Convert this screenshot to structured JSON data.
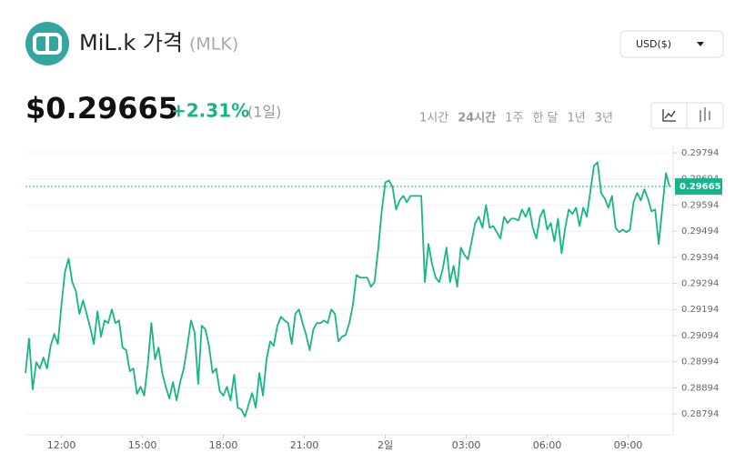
{
  "header": {
    "title": "MiL.k 가격",
    "symbol": "(MLK)",
    "currency": "USD($)",
    "price": "$0.29665",
    "change": "+2.31%",
    "period": "(1일)",
    "ranges": [
      "1시간",
      "24시간",
      "1주",
      "한 달",
      "1년",
      "3년"
    ]
  },
  "chart_data": {
    "type": "line",
    "x": [
      640,
      648,
      656,
      664,
      672,
      680,
      688,
      696,
      704,
      712,
      720,
      728,
      736,
      744,
      752,
      760,
      768,
      776,
      784,
      792,
      800,
      808,
      816,
      824,
      832,
      840,
      848,
      856,
      864,
      872,
      880,
      888,
      896,
      904,
      912,
      920,
      928,
      936,
      944,
      952,
      960,
      968,
      976,
      984,
      992,
      1000,
      1008,
      1016,
      1024,
      1032,
      1040,
      1048,
      1056,
      1064,
      1072,
      1080,
      1088,
      1096,
      1104,
      1112,
      1120,
      1128,
      1136,
      1144,
      1152,
      1160,
      1168,
      1176,
      1184,
      1192,
      1200,
      1208,
      1216,
      1224,
      1232,
      1240,
      1248,
      1256,
      1264,
      1272,
      1280,
      1288,
      1296,
      1304,
      1312,
      1320,
      1328,
      1336,
      1344,
      1352,
      1360,
      1368,
      1376,
      1384,
      1392,
      1400,
      1408,
      1416,
      1424,
      1432,
      1440,
      1448,
      1456,
      1464,
      1472,
      1480,
      1488,
      1496,
      1504,
      1512,
      1520,
      1528,
      1536,
      1544,
      1552,
      1560,
      1568,
      1576,
      1584,
      1592,
      1600,
      1608,
      1616,
      1624,
      1632,
      1640,
      1648,
      1656,
      1664,
      1672,
      1680,
      1688,
      1696,
      1704,
      1712,
      1720,
      1728,
      1736,
      1744,
      1752,
      1760,
      1768,
      1776,
      1784,
      1792,
      1800,
      1808,
      1816,
      1824,
      1832,
      1840,
      1848,
      1856,
      1864,
      1872,
      1880,
      1888,
      1896,
      1904,
      1912,
      1920,
      1928,
      1936,
      1944,
      1952,
      1960,
      1968,
      1976,
      1984,
      1992,
      2000,
      2008,
      2016,
      2024,
      2032,
      2040,
      2048,
      2056,
      2064,
      2072
    ],
    "series": [
      {
        "color": "#16b489",
        "values": [
          0.28951,
          0.29083,
          0.28888,
          0.28992,
          0.28968,
          0.2901,
          0.28968,
          0.29055,
          0.291,
          0.29062,
          0.29212,
          0.2934,
          0.29389,
          0.29299,
          0.29264,
          0.29177,
          0.29229,
          0.29177,
          0.29125,
          0.29062,
          0.29187,
          0.2909,
          0.29152,
          0.29142,
          0.29194,
          0.29142,
          0.29152,
          0.29048,
          0.29038,
          0.28958,
          0.28968,
          0.28871,
          0.28898,
          0.28864,
          0.28985,
          0.29142,
          0.29003,
          0.29048,
          0.28951,
          0.28898,
          0.28853,
          0.28916,
          0.28846,
          0.28916,
          0.28968,
          0.29055,
          0.29152,
          0.29107,
          0.28909,
          0.29132,
          0.29118,
          0.29055,
          0.28951,
          0.28968,
          0.28881,
          0.28864,
          0.28898,
          0.28846,
          0.28944,
          0.28818,
          0.28811,
          0.28784,
          0.28829,
          0.28874,
          0.28818,
          0.28951,
          0.28864,
          0.29003,
          0.29072,
          0.29055,
          0.29132,
          0.29166,
          0.29152,
          0.29142,
          0.29062,
          0.29177,
          0.29194,
          0.29142,
          0.29097,
          0.29038,
          0.29118,
          0.29142,
          0.29142,
          0.29152,
          0.29142,
          0.29194,
          0.29177,
          0.29072,
          0.2909,
          0.29097,
          0.29142,
          0.29212,
          0.29326,
          0.29316,
          0.29316,
          0.29316,
          0.29281,
          0.29299,
          0.2942,
          0.2957,
          0.29681,
          0.29688,
          0.29664,
          0.29577,
          0.29612,
          0.29629,
          0.29605,
          0.29629,
          0.29629,
          0.29629,
          0.29629,
          0.29299,
          0.29445,
          0.29368,
          0.29316,
          0.29299,
          0.29351,
          0.29431,
          0.29299,
          0.29361,
          0.29281,
          0.29431,
          0.29403,
          0.29386,
          0.29455,
          0.29525,
          0.29549,
          0.29507,
          0.29594,
          0.29507,
          0.29514,
          0.2949,
          0.29466,
          0.29549,
          0.29525,
          0.29542,
          0.29542,
          0.29535,
          0.29577,
          0.29549,
          0.29584,
          0.29507,
          0.29466,
          0.29549,
          0.29577,
          0.295,
          0.29525,
          0.29455,
          0.29542,
          0.2941,
          0.29507,
          0.29577,
          0.2956,
          0.29584,
          0.29514,
          0.29584,
          0.29549,
          0.29647,
          0.29744,
          0.29758,
          0.2964,
          0.29619,
          0.29584,
          0.29629,
          0.29507,
          0.2949,
          0.295,
          0.2949,
          0.295,
          0.29605,
          0.2964,
          0.29612,
          0.29654,
          0.29619,
          0.2957,
          0.29577,
          0.29445,
          0.29584,
          0.29716,
          0.29665
        ]
      }
    ],
    "current_price": 0.29665,
    "xlim": [
      640,
      2080
    ],
    "xticks": [
      {
        "value": 720,
        "label": "12:00"
      },
      {
        "value": 900,
        "label": "15:00"
      },
      {
        "value": 1080,
        "label": "18:00"
      },
      {
        "value": 1260,
        "label": "21:00"
      },
      {
        "value": 1440,
        "label": "2일"
      },
      {
        "value": 1620,
        "label": "03:00"
      },
      {
        "value": 1800,
        "label": "06:00"
      },
      {
        "value": 1980,
        "label": "09:00"
      }
    ],
    "ylim": [
      0.28714,
      0.29822
    ],
    "yticks": [
      0.28794,
      0.28894,
      0.28994,
      0.29094,
      0.29194,
      0.29294,
      0.29394,
      0.29494,
      0.29594,
      0.29694,
      0.29794
    ],
    "grid": true
  }
}
